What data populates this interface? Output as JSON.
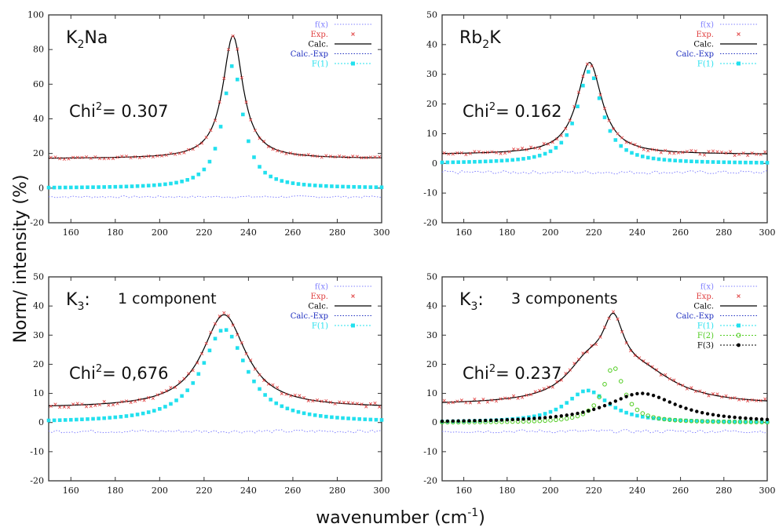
{
  "ylabel": "Norm/ intensity (%)",
  "xlabel_main": "wavenumber (cm",
  "xlabel_sup": "-1",
  "xlabel_end": ")",
  "colors": {
    "fx": "#8080ff",
    "exp": "#e04040",
    "calc": "#000000",
    "calcexp": "#2030c0",
    "F1": "#22e0ee",
    "F2": "#50cc20",
    "F3": "#000000"
  },
  "chart_data": [
    {
      "type": "scatter",
      "title_main": "K",
      "title_sub": "2",
      "title_end": "Na",
      "chi_label": "Chi",
      "chi_sup": "2",
      "chi_value": "= 0.307",
      "xlim": [
        150,
        300
      ],
      "ylim": [
        -20,
        100
      ],
      "xticks": [
        160,
        180,
        200,
        220,
        240,
        260,
        280,
        300
      ],
      "yticks": [
        -20,
        0,
        20,
        40,
        60,
        80,
        100
      ],
      "legend": [
        "f(x)",
        "Exp.",
        "Calc.",
        "Calc.-Exp",
        "F(1)"
      ],
      "baseline": 17,
      "peaks": [
        {
          "center": 233,
          "height": 71,
          "width": 5.5
        }
      ],
      "residual": -5,
      "x": [
        150,
        160,
        180,
        200,
        215,
        225,
        230,
        233,
        236,
        240,
        250,
        260,
        280,
        300
      ],
      "F1_values": [
        0.3,
        0.5,
        1.4,
        2.9,
        6.7,
        22.4,
        52.7,
        71,
        52.7,
        22.4,
        6.0,
        2.7,
        1.0,
        0.4
      ]
    },
    {
      "type": "scatter",
      "title_main": "Rb",
      "title_sub": "2",
      "title_end": "K",
      "chi_label": "Chi",
      "chi_sup": "2",
      "chi_value": "= 0.162",
      "xlim": [
        150,
        300
      ],
      "ylim": [
        -20,
        50
      ],
      "xticks": [
        160,
        180,
        200,
        220,
        240,
        260,
        280,
        300
      ],
      "yticks": [
        -20,
        -10,
        0,
        10,
        20,
        30,
        40,
        50
      ],
      "legend": [
        "f(x)",
        "Exp.",
        "Calc.",
        "Calc.-Exp",
        "F(1)"
      ],
      "baseline": 3,
      "peaks": [
        {
          "center": 218,
          "height": 31,
          "width": 7
        }
      ],
      "residual": -3,
      "x": [
        150,
        160,
        180,
        200,
        210,
        215,
        218,
        221,
        226,
        240,
        260,
        280,
        300
      ],
      "F1_values": [
        0.3,
        0.4,
        1.0,
        3.3,
        13.8,
        26.4,
        31,
        26.4,
        13.8,
        2.8,
        1.1,
        0.6,
        0.3
      ]
    },
    {
      "type": "scatter",
      "title_main": "K",
      "title_sub": "3",
      "title_end": ":",
      "title_note": "1 component",
      "chi_label": "Chi",
      "chi_sup": "2",
      "chi_value": "= 0,676",
      "xlim": [
        150,
        300
      ],
      "ylim": [
        -20,
        50
      ],
      "xticks": [
        160,
        180,
        200,
        220,
        240,
        260,
        280,
        300
      ],
      "yticks": [
        -20,
        -10,
        0,
        10,
        20,
        30,
        40,
        50
      ],
      "legend": [
        "f(x)",
        "Exp.",
        "Calc.",
        "Calc.-Exp",
        "F(1)"
      ],
      "baseline": 5,
      "peaks": [
        {
          "center": 229,
          "height": 32,
          "width": 12
        }
      ],
      "residual": -3,
      "x": [
        150,
        160,
        180,
        200,
        215,
        225,
        229,
        233,
        240,
        260,
        280,
        300
      ],
      "F1_values": [
        0.7,
        1.4,
        2.7,
        4.7,
        13.6,
        26.1,
        32,
        26.1,
        17.4,
        4.0,
        2.0,
        1.2
      ]
    },
    {
      "type": "scatter",
      "title_main": "K",
      "title_sub": "3",
      "title_end": ":",
      "title_note": "3 components",
      "chi_label": "Chi",
      "chi_sup": "2",
      "chi_value": "= 0.237",
      "xlim": [
        150,
        300
      ],
      "ylim": [
        -20,
        50
      ],
      "xticks": [
        160,
        180,
        200,
        220,
        240,
        260,
        280,
        300
      ],
      "yticks": [
        -20,
        -10,
        0,
        10,
        20,
        30,
        40,
        50
      ],
      "legend": [
        "f(x)",
        "Exp.",
        "Calc.",
        "Calc.-Exp",
        "F(1)",
        "F(2)",
        "F(3)"
      ],
      "baseline": 6,
      "peaks": [
        {
          "name": "F(1)",
          "center": 217,
          "height": 11,
          "width": 12
        },
        {
          "name": "F(2)",
          "center": 229,
          "height": 19,
          "width": 6
        },
        {
          "name": "F(3)",
          "center": 242,
          "height": 10,
          "width": 20
        }
      ],
      "residual": -3,
      "x": [
        150,
        180,
        200,
        210,
        217,
        225,
        229,
        233,
        242,
        260,
        280,
        300
      ],
      "F1_values": [
        0,
        0.5,
        3.2,
        7.9,
        11,
        7.5,
        4.5,
        3.0,
        1.3,
        0.4,
        0.1,
        0
      ],
      "F2_values": [
        0,
        0,
        0,
        0.2,
        1.4,
        11.6,
        19,
        12.8,
        1.5,
        0.1,
        0,
        0
      ],
      "F3_values": [
        0,
        0,
        0.1,
        0.6,
        2.2,
        5.1,
        6.8,
        8.4,
        10,
        5.4,
        1.2,
        0.1
      ]
    }
  ]
}
